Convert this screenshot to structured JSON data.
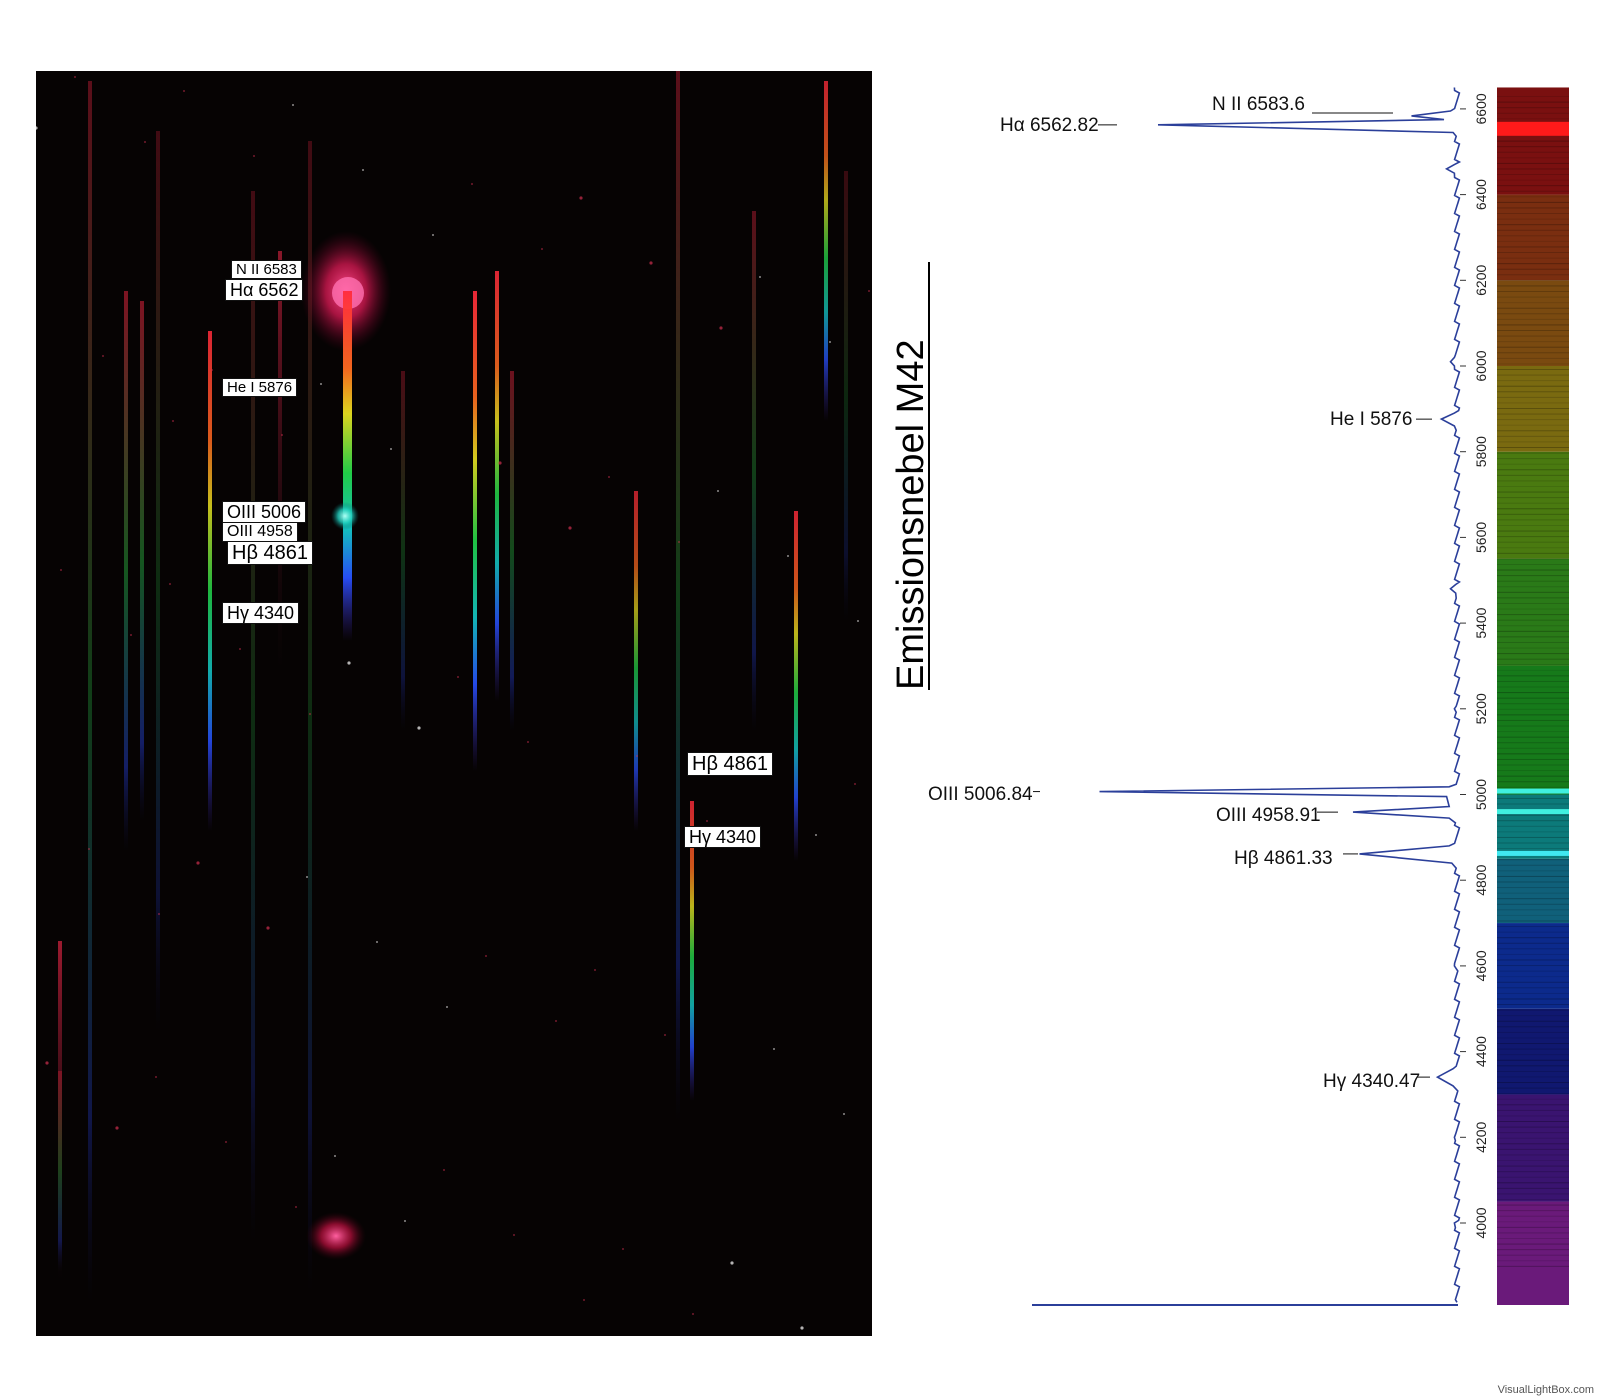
{
  "photo": {
    "labels_left": [
      {
        "id": "nii",
        "text": "N II 6583"
      },
      {
        "id": "ha",
        "text": "Hα 6562"
      },
      {
        "id": "hei",
        "text": "He I 5876"
      },
      {
        "id": "oiii5",
        "text": "OIII  5006"
      },
      {
        "id": "oiii4",
        "text": "OIII 4958"
      },
      {
        "id": "hb",
        "text": "Hβ 4861"
      },
      {
        "id": "hg",
        "text": "Hγ 4340"
      }
    ],
    "labels_right": [
      {
        "id": "hb2",
        "text": "Hβ 4861"
      },
      {
        "id": "hg2",
        "text": "Hγ 4340"
      }
    ]
  },
  "chart_data": {
    "type": "line",
    "title": "Emissionsnebel  M42",
    "xlabel": "",
    "ylabel": "",
    "axis": "wavelength (vertical, Å)",
    "ylim": [
      3800,
      6650
    ],
    "yticks": [
      4000,
      4200,
      4400,
      4600,
      4800,
      5000,
      5200,
      5400,
      5600,
      5800,
      6000,
      6200,
      6400,
      6600
    ],
    "orientation": "vertical",
    "grid": false,
    "series": [
      {
        "color": "#2b3f9a",
        "points": [
          [
            3815,
            0.0
          ],
          [
            4000,
            0.02
          ],
          [
            4200,
            0.02
          ],
          [
            4320,
            0.03
          ],
          [
            4340.47,
            0.15
          ],
          [
            4360,
            0.03
          ],
          [
            4600,
            0.02
          ],
          [
            4840,
            0.04
          ],
          [
            4861.33,
            0.75
          ],
          [
            4880,
            0.06
          ],
          [
            4945,
            0.06
          ],
          [
            4958.91,
            0.8
          ],
          [
            4972,
            0.06
          ],
          [
            4995,
            0.08
          ],
          [
            5006.84,
            2.75
          ],
          [
            5018,
            0.06
          ],
          [
            5200,
            0.02
          ],
          [
            5470,
            0.01
          ],
          [
            5480,
            0.05
          ],
          [
            5490,
            0.01
          ],
          [
            5860,
            0.02
          ],
          [
            5876,
            0.12
          ],
          [
            5890,
            0.02
          ],
          [
            6000,
            0.02
          ],
          [
            6010,
            0.05
          ],
          [
            6020,
            0.02
          ],
          [
            6450,
            0.02
          ],
          [
            6460,
            0.08
          ],
          [
            6470,
            0.02
          ],
          [
            6545,
            0.03
          ],
          [
            6562.82,
            2.3
          ],
          [
            6575,
            0.1
          ],
          [
            6583.6,
            0.35
          ],
          [
            6595,
            0.05
          ],
          [
            6650,
            0.02
          ]
        ]
      }
    ],
    "annotations": [
      {
        "text": "N II 6583.6",
        "wavelength": 6583.6
      },
      {
        "text": "Hα 6562.82",
        "wavelength": 6562.82
      },
      {
        "text": "He I 5876",
        "wavelength": 5876
      },
      {
        "text": "OIII  5006.84",
        "wavelength": 5006.84
      },
      {
        "text": "OIII 4958.91",
        "wavelength": 4958.91
      },
      {
        "text": "Hβ 4861.33",
        "wavelength": 4861.33
      },
      {
        "text": "Hγ 4340.47",
        "wavelength": 4340.47
      }
    ],
    "color_strip": {
      "bright_lines": [
        {
          "wavelength": 6562.82,
          "color": "#ff1a1a"
        },
        {
          "wavelength": 5006.84,
          "color": "#40f0e0"
        },
        {
          "wavelength": 4958.91,
          "color": "#40f0e0"
        },
        {
          "wavelength": 4861.33,
          "color": "#40e8f0"
        }
      ]
    }
  },
  "watermark": "VisualLightBox.com"
}
